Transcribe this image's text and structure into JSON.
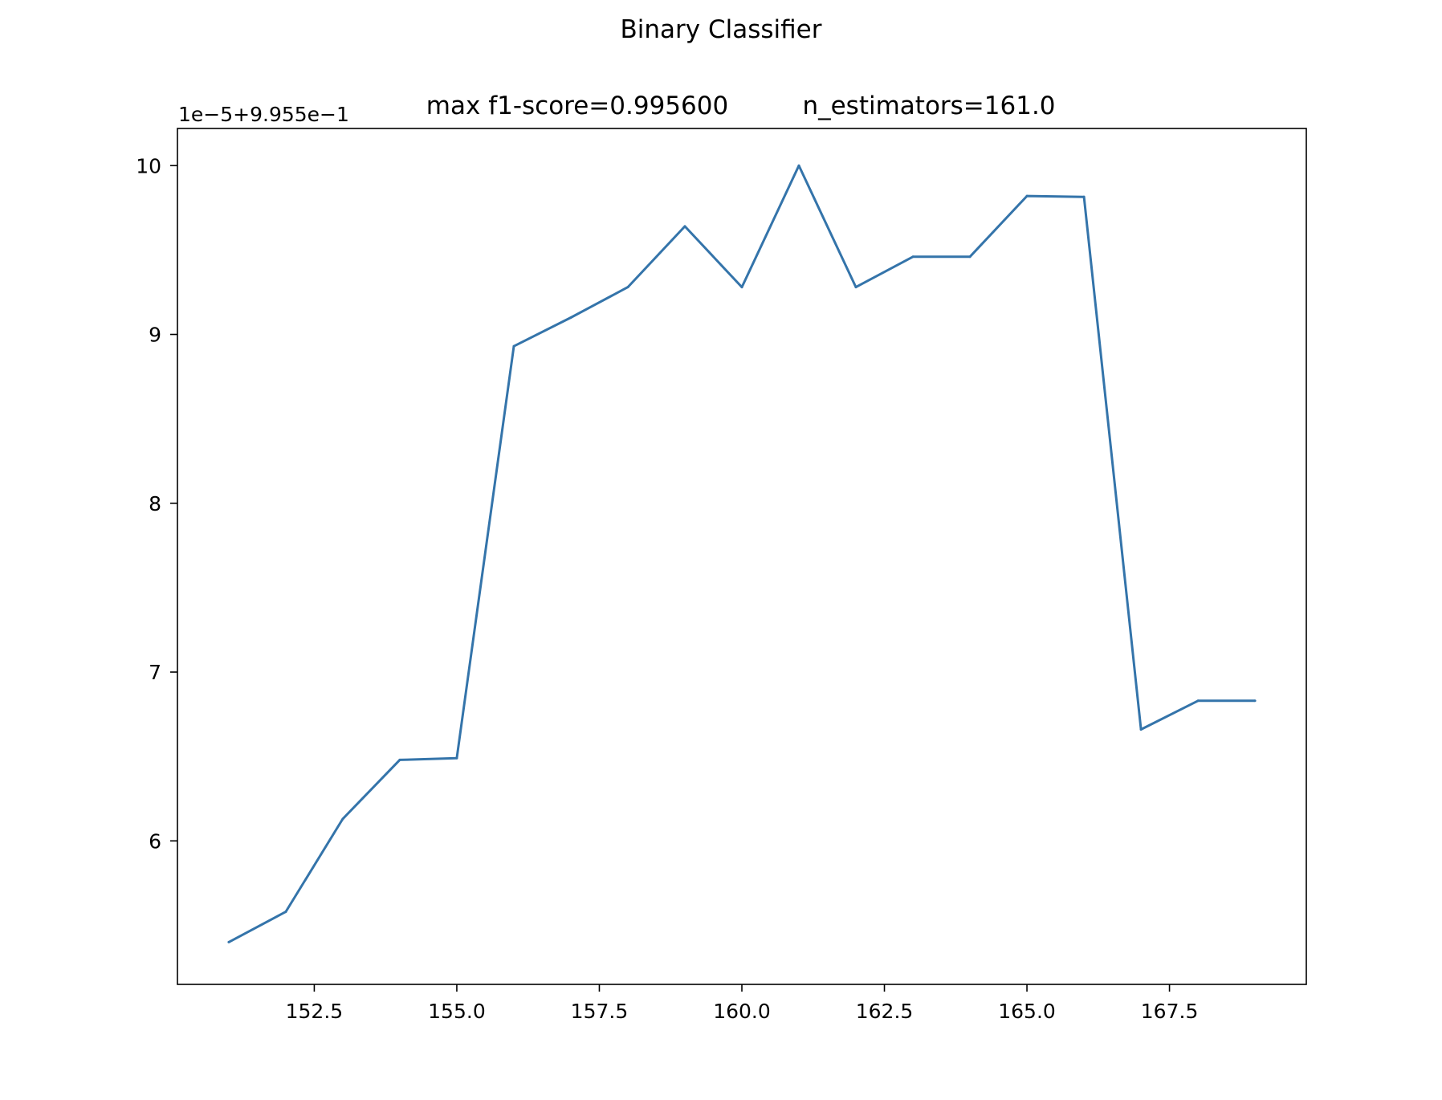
{
  "chart_data": {
    "type": "line",
    "title": "Binary Classifier",
    "subtitle_left": "max f1-score=0.995600",
    "subtitle_right": "n_estimators=161.0",
    "y_offset_label": "1e−5+9.955e−1",
    "xlabel": "",
    "ylabel": "",
    "grid": false,
    "xlim": [
      150.1,
      169.9
    ],
    "ylim": [
      5.15,
      10.22
    ],
    "x_ticks": [
      152.5,
      155.0,
      157.5,
      160.0,
      162.5,
      165.0,
      167.5
    ],
    "x_tick_labels": [
      "152.5",
      "155.0",
      "157.5",
      "160.0",
      "162.5",
      "165.0",
      "167.5"
    ],
    "y_ticks": [
      6,
      7,
      8,
      9,
      10
    ],
    "y_tick_labels": [
      "6",
      "7",
      "8",
      "9",
      "10"
    ],
    "color": "#3474aa",
    "series": [
      {
        "x": [
          151,
          152,
          153,
          154,
          155,
          156,
          157,
          158,
          159,
          160,
          161,
          162,
          163,
          164,
          165,
          166,
          167,
          168,
          169
        ],
        "y": [
          5.4,
          5.58,
          6.13,
          6.48,
          6.49,
          8.93,
          9.1,
          9.28,
          9.64,
          9.28,
          10.0,
          9.28,
          9.46,
          9.46,
          9.82,
          9.815,
          6.66,
          6.83,
          6.83
        ]
      }
    ]
  }
}
